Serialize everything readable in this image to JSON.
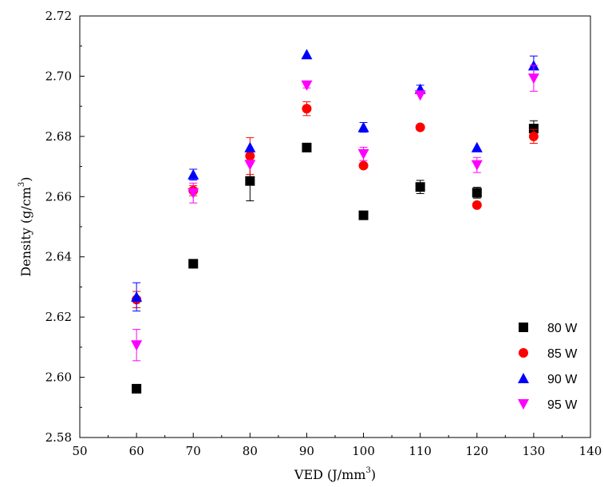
{
  "chart_data": {
    "type": "scatter",
    "title": "",
    "xlabel": "VED (J/mm",
    "xlabel_sup": "3",
    "xlabel_end": ")",
    "ylabel": "Density (g/cm",
    "ylabel_sup": "3",
    "ylabel_end": ")",
    "xlim": [
      50,
      140
    ],
    "ylim": [
      2.58,
      2.72
    ],
    "xticks": [
      50,
      60,
      70,
      80,
      90,
      100,
      110,
      120,
      130,
      140
    ],
    "yticks": [
      "2.58",
      "2.60",
      "2.62",
      "2.64",
      "2.66",
      "2.68",
      "2.70",
      "2.72"
    ],
    "grid": false,
    "legend_position": "bottom-right",
    "series": [
      {
        "name": "80 W",
        "marker": "square",
        "color": "#000000",
        "x": [
          60,
          70,
          80,
          90,
          100,
          110,
          120,
          130
        ],
        "y": [
          2.5962,
          2.6377,
          2.6652,
          2.6763,
          2.6538,
          2.6632,
          2.6613,
          2.6826
        ],
        "err": [
          0,
          0,
          0.0066,
          0,
          0.0013,
          0.0022,
          0.0018,
          0.0026
        ]
      },
      {
        "name": "85 W",
        "marker": "circle",
        "color": "#ff0000",
        "x": [
          60,
          70,
          80,
          90,
          100,
          110,
          120,
          130
        ],
        "y": [
          2.6258,
          2.662,
          2.6735,
          2.6892,
          2.6703,
          2.683,
          2.6572,
          2.68
        ],
        "err": [
          0.0027,
          0.0017,
          0.0061,
          0.0023,
          0,
          0,
          0,
          0.0023
        ]
      },
      {
        "name": "90 W",
        "marker": "triangle-up",
        "color": "#0000ff",
        "x": [
          60,
          70,
          80,
          90,
          100,
          110,
          120,
          130
        ],
        "y": [
          2.6267,
          2.6673,
          2.6763,
          2.7072,
          2.683,
          2.6957,
          2.6763,
          2.7035
        ],
        "err": [
          0.0047,
          0.0018,
          0,
          0,
          0.0016,
          0.0013,
          0,
          0.0032
        ]
      },
      {
        "name": "95 W",
        "marker": "triangle-down",
        "color": "#ff00ff",
        "x": [
          60,
          70,
          80,
          90,
          100,
          110,
          120,
          130
        ],
        "y": [
          2.6107,
          2.6612,
          2.6706,
          2.697,
          2.6742,
          2.6937,
          2.6705,
          2.6993
        ],
        "err": [
          0.0052,
          0.0033,
          0,
          0.0009,
          0.0022,
          0,
          0.0025,
          0.0043
        ]
      }
    ]
  }
}
